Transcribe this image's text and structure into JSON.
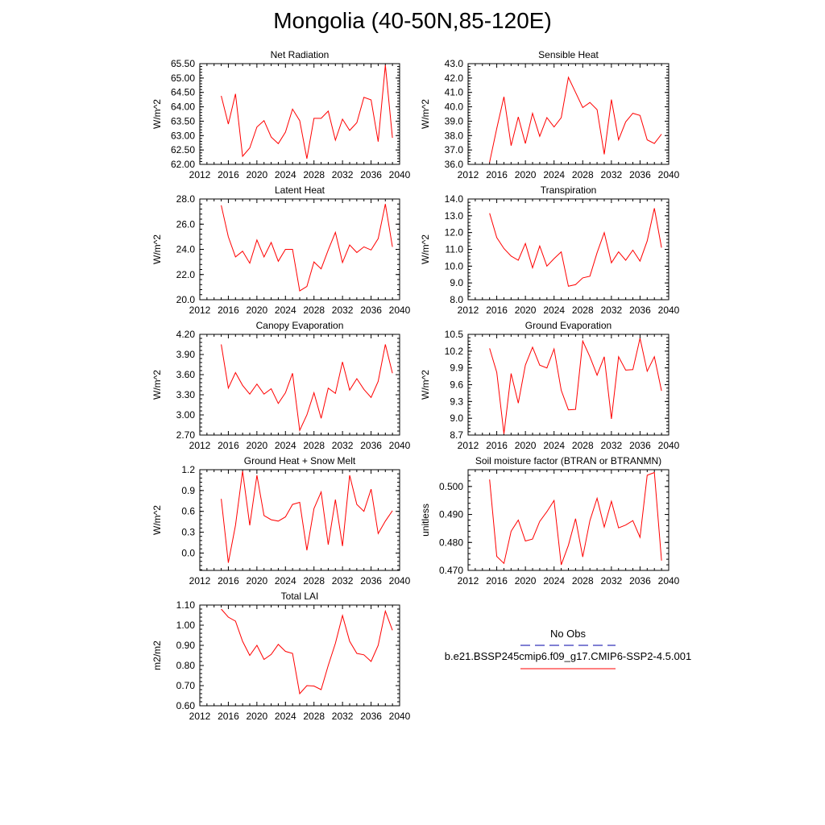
{
  "title": "Mongolia (40-50N,85-120E)",
  "colors": {
    "model": "#ff0000",
    "obs": "#0000aa"
  },
  "legend": {
    "obs_label": "No Obs",
    "model_label": "b.e21.BSSP245cmip6.f09_g17.CMIP6-SSP2-4.5.001"
  },
  "chart_data": [
    {
      "type": "line",
      "title": "Net Radiation",
      "xlabel": "",
      "ylabel": "W/m^2",
      "xlim": [
        2012,
        2040
      ],
      "ylim": [
        62.0,
        65.5
      ],
      "xticks": [
        2012,
        2016,
        2020,
        2024,
        2028,
        2032,
        2036,
        2040
      ],
      "yticks": [
        "62.00",
        "62.50",
        "63.00",
        "63.50",
        "64.00",
        "64.50",
        "65.00",
        "65.50"
      ],
      "x": [
        2015,
        2016,
        2017,
        2018,
        2019,
        2020,
        2021,
        2022,
        2023,
        2024,
        2025,
        2026,
        2027,
        2028,
        2029,
        2030,
        2031,
        2032,
        2033,
        2034,
        2035,
        2036,
        2037,
        2038,
        2039
      ],
      "series": [
        {
          "values": [
            64.38,
            63.4,
            64.45,
            62.28,
            62.57,
            63.3,
            63.52,
            62.95,
            62.72,
            63.12,
            63.92,
            63.52,
            62.2,
            63.6,
            63.6,
            63.85,
            62.84,
            63.57,
            63.18,
            63.45,
            64.33,
            64.24,
            62.79,
            65.45,
            62.92
          ]
        }
      ]
    },
    {
      "type": "line",
      "title": "Sensible Heat",
      "xlabel": "",
      "ylabel": "W/m^2",
      "xlim": [
        2012,
        2040
      ],
      "ylim": [
        36.0,
        43.0
      ],
      "xticks": [
        2012,
        2016,
        2020,
        2024,
        2028,
        2032,
        2036,
        2040
      ],
      "yticks": [
        "36.0",
        "37.0",
        "38.0",
        "39.0",
        "40.0",
        "41.0",
        "42.0",
        "43.0"
      ],
      "x": [
        2015,
        2016,
        2017,
        2018,
        2019,
        2020,
        2021,
        2022,
        2023,
        2024,
        2025,
        2026,
        2027,
        2028,
        2029,
        2030,
        2031,
        2032,
        2033,
        2034,
        2035,
        2036,
        2037,
        2038,
        2039
      ],
      "series": [
        {
          "values": [
            36.15,
            38.5,
            40.7,
            37.3,
            39.3,
            37.45,
            39.55,
            37.95,
            39.25,
            38.6,
            39.25,
            42.05,
            41.0,
            39.95,
            40.3,
            39.8,
            36.7,
            40.5,
            37.7,
            38.95,
            39.55,
            39.4,
            37.7,
            37.45,
            38.1
          ]
        }
      ]
    },
    {
      "type": "line",
      "title": "Latent Heat",
      "xlabel": "",
      "ylabel": "W/m^2",
      "xlim": [
        2012,
        2040
      ],
      "ylim": [
        20.0,
        28.0
      ],
      "xticks": [
        2012,
        2016,
        2020,
        2024,
        2028,
        2032,
        2036,
        2040
      ],
      "yticks": [
        "20.0",
        "22.0",
        "24.0",
        "26.0",
        "28.0"
      ],
      "x": [
        2015,
        2016,
        2017,
        2018,
        2019,
        2020,
        2021,
        2022,
        2023,
        2024,
        2025,
        2026,
        2027,
        2028,
        2029,
        2030,
        2031,
        2032,
        2033,
        2034,
        2035,
        2036,
        2037,
        2038,
        2039
      ],
      "series": [
        {
          "values": [
            27.5,
            25.0,
            23.4,
            23.85,
            22.9,
            24.75,
            23.4,
            24.55,
            23.05,
            24.0,
            24.0,
            20.7,
            21.05,
            23.0,
            22.45,
            23.95,
            25.35,
            22.95,
            24.35,
            23.75,
            24.2,
            23.95,
            24.85,
            27.6,
            24.2
          ]
        }
      ]
    },
    {
      "type": "line",
      "title": "Transpiration",
      "xlabel": "",
      "ylabel": "W/m^2",
      "xlim": [
        2012,
        2040
      ],
      "ylim": [
        8.0,
        14.0
      ],
      "xticks": [
        2012,
        2016,
        2020,
        2024,
        2028,
        2032,
        2036,
        2040
      ],
      "yticks": [
        "8.0",
        "9.0",
        "10.0",
        "11.0",
        "12.0",
        "13.0",
        "14.0"
      ],
      "x": [
        2015,
        2016,
        2017,
        2018,
        2019,
        2020,
        2021,
        2022,
        2023,
        2024,
        2025,
        2026,
        2027,
        2028,
        2029,
        2030,
        2031,
        2032,
        2033,
        2034,
        2035,
        2036,
        2037,
        2038,
        2039
      ],
      "series": [
        {
          "values": [
            13.15,
            11.7,
            11.05,
            10.6,
            10.35,
            11.35,
            9.9,
            11.2,
            10.0,
            10.45,
            10.85,
            8.8,
            8.9,
            9.3,
            9.4,
            10.8,
            12.0,
            10.2,
            10.85,
            10.35,
            10.95,
            10.3,
            11.5,
            13.45,
            11.1
          ]
        }
      ]
    },
    {
      "type": "line",
      "title": "Canopy Evaporation",
      "xlabel": "",
      "ylabel": "W/m^2",
      "xlim": [
        2012,
        2040
      ],
      "ylim": [
        2.7,
        4.2
      ],
      "xticks": [
        2012,
        2016,
        2020,
        2024,
        2028,
        2032,
        2036,
        2040
      ],
      "yticks": [
        "2.70",
        "3.00",
        "3.30",
        "3.60",
        "3.90",
        "4.20"
      ],
      "x": [
        2015,
        2016,
        2017,
        2018,
        2019,
        2020,
        2021,
        2022,
        2023,
        2024,
        2025,
        2026,
        2027,
        2028,
        2029,
        2030,
        2031,
        2032,
        2033,
        2034,
        2035,
        2036,
        2037,
        2038,
        2039
      ],
      "series": [
        {
          "values": [
            4.05,
            3.4,
            3.63,
            3.44,
            3.31,
            3.46,
            3.31,
            3.39,
            3.17,
            3.33,
            3.62,
            2.77,
            3.0,
            3.33,
            2.95,
            3.4,
            3.32,
            3.79,
            3.37,
            3.54,
            3.38,
            3.26,
            3.5,
            4.05,
            3.62
          ]
        }
      ]
    },
    {
      "type": "line",
      "title": "Ground Evaporation",
      "xlabel": "",
      "ylabel": "W/m^2",
      "xlim": [
        2012,
        2040
      ],
      "ylim": [
        8.7,
        10.5
      ],
      "xticks": [
        2012,
        2016,
        2020,
        2024,
        2028,
        2032,
        2036,
        2040
      ],
      "yticks": [
        "8.7",
        "9.0",
        "9.3",
        "9.6",
        "9.9",
        "10.2",
        "10.5"
      ],
      "x": [
        2015,
        2016,
        2017,
        2018,
        2019,
        2020,
        2021,
        2022,
        2023,
        2024,
        2025,
        2026,
        2027,
        2028,
        2029,
        2030,
        2031,
        2032,
        2033,
        2034,
        2035,
        2036,
        2037,
        2038,
        2039
      ],
      "series": [
        {
          "values": [
            10.25,
            9.82,
            8.72,
            9.8,
            9.27,
            9.95,
            10.27,
            9.95,
            9.9,
            10.24,
            9.5,
            9.15,
            9.16,
            10.38,
            10.1,
            9.77,
            10.1,
            8.99,
            10.1,
            9.86,
            9.87,
            10.43,
            9.84,
            10.1,
            9.49
          ]
        }
      ]
    },
    {
      "type": "line",
      "title": "Ground Heat + Snow Melt",
      "xlabel": "",
      "ylabel": "W/m^2",
      "xlim": [
        2012,
        2040
      ],
      "ylim": [
        -0.25,
        1.2
      ],
      "xticks": [
        2012,
        2016,
        2020,
        2024,
        2028,
        2032,
        2036,
        2040
      ],
      "yticks": [
        "0.0",
        "0.3",
        "0.6",
        "0.9",
        "1.2"
      ],
      "x": [
        2015,
        2016,
        2017,
        2018,
        2019,
        2020,
        2021,
        2022,
        2023,
        2024,
        2025,
        2026,
        2027,
        2028,
        2029,
        2030,
        2031,
        2032,
        2033,
        2034,
        2035,
        2036,
        2037,
        2038,
        2039
      ],
      "series": [
        {
          "values": [
            0.78,
            -0.14,
            0.4,
            1.18,
            0.4,
            1.12,
            0.54,
            0.48,
            0.46,
            0.52,
            0.7,
            0.73,
            0.04,
            0.64,
            0.88,
            0.12,
            0.77,
            0.1,
            1.12,
            0.7,
            0.6,
            0.92,
            0.28,
            0.46,
            0.61
          ]
        }
      ]
    },
    {
      "type": "line",
      "title": "Soil moisture factor (BTRAN or BTRANMN)",
      "xlabel": "",
      "ylabel": "unitless",
      "xlim": [
        2012,
        2040
      ],
      "ylim": [
        0.47,
        0.506
      ],
      "xticks": [
        2012,
        2016,
        2020,
        2024,
        2028,
        2032,
        2036,
        2040
      ],
      "yticks": [
        "0.470",
        "0.480",
        "0.490",
        "0.500"
      ],
      "x": [
        2015,
        2016,
        2017,
        2018,
        2019,
        2020,
        2021,
        2022,
        2023,
        2024,
        2025,
        2026,
        2027,
        2028,
        2029,
        2030,
        2031,
        2032,
        2033,
        2034,
        2035,
        2036,
        2037,
        2038,
        2039
      ],
      "series": [
        {
          "values": [
            0.5025,
            0.475,
            0.4725,
            0.484,
            0.488,
            0.4805,
            0.4812,
            0.4875,
            0.491,
            0.495,
            0.472,
            0.479,
            0.4885,
            0.4748,
            0.4878,
            0.4958,
            0.4855,
            0.4947,
            0.4852,
            0.4862,
            0.4878,
            0.4818,
            0.504,
            0.505,
            0.4735
          ]
        }
      ]
    },
    {
      "type": "line",
      "title": "Total LAI",
      "xlabel": "",
      "ylabel": "m2/m2",
      "xlim": [
        2012,
        2040
      ],
      "ylim": [
        0.6,
        1.1
      ],
      "xticks": [
        2012,
        2016,
        2020,
        2024,
        2028,
        2032,
        2036,
        2040
      ],
      "yticks": [
        "0.60",
        "0.70",
        "0.80",
        "0.90",
        "1.00",
        "1.10"
      ],
      "x": [
        2015,
        2016,
        2017,
        2018,
        2019,
        2020,
        2021,
        2022,
        2023,
        2024,
        2025,
        2026,
        2027,
        2028,
        2029,
        2030,
        2031,
        2032,
        2033,
        2034,
        2035,
        2036,
        2037,
        2038,
        2039
      ],
      "series": [
        {
          "values": [
            1.08,
            1.04,
            1.02,
            0.92,
            0.85,
            0.9,
            0.83,
            0.855,
            0.905,
            0.87,
            0.86,
            0.66,
            0.7,
            0.698,
            0.68,
            0.8,
            0.91,
            1.048,
            0.92,
            0.86,
            0.853,
            0.82,
            0.9,
            1.07,
            0.975
          ]
        }
      ]
    }
  ]
}
